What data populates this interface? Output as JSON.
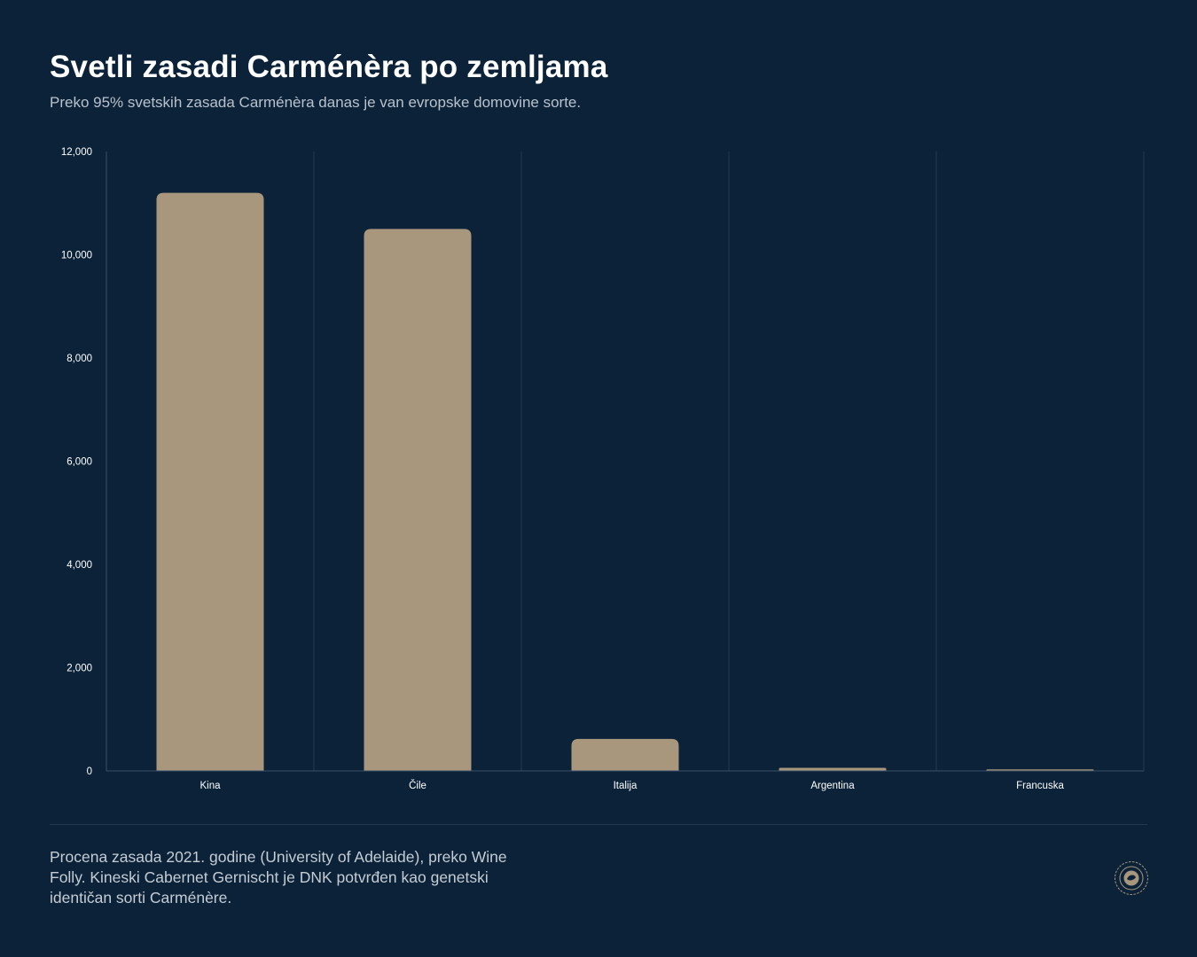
{
  "header": {
    "title": "Svetli zasadi Carménèra po zemljama",
    "subtitle": "Preko 95% svetskih zasada Carménèra danas je van evropske domovine sorte."
  },
  "footer": {
    "note": "Procena zasada 2021. godine (University of Adelaide), preko Wine Folly. Kineski Cabernet Gernischt je DNK potvrđen kao genetski identičan sorti Carménère."
  },
  "colors": {
    "background": "#0b2239",
    "bar": "#a8977c",
    "grid": "#23394f",
    "tick_text": "#ffffff"
  },
  "chart_data": {
    "type": "bar",
    "categories": [
      "Kina",
      "Čile",
      "Italija",
      "Argentina",
      "Francuska"
    ],
    "values": [
      11200,
      10500,
      620,
      60,
      30
    ],
    "ylim": [
      0,
      12000
    ],
    "yticks": [
      0,
      2000,
      4000,
      6000,
      8000,
      10000,
      12000
    ],
    "ytick_labels": [
      "0",
      "2,000",
      "4,000",
      "6,000",
      "8,000",
      "10,000",
      "12,000"
    ],
    "xlabel": "",
    "ylabel": "",
    "grid": "vertical",
    "legend": "none"
  }
}
